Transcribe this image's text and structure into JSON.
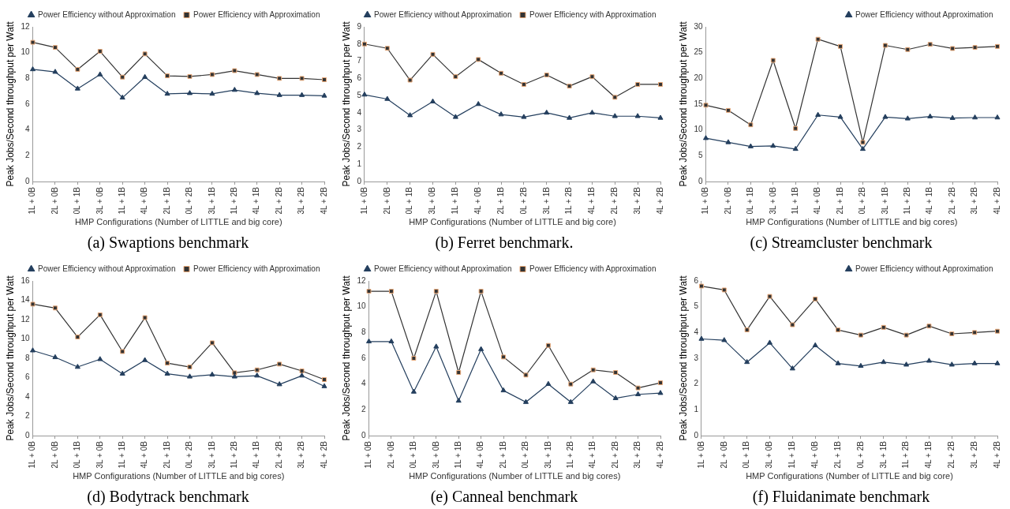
{
  "chart_data": [
    {
      "type": "line",
      "title": "(a) Swaptions benchmark",
      "xlabel": "HMP Configurations (Number of LITTLE and big core)",
      "ylabel": "Peak Jobs/Second throughput per Watt",
      "categories": [
        "1L + 0B",
        "2L + 0B",
        "0L + 1B",
        "3L + 0B",
        "1L + 1B",
        "4L + 0B",
        "2L + 1B",
        "0L + 2B",
        "3L + 1B",
        "1L + 2B",
        "4L + 1B",
        "2L + 2B",
        "3L + 2B",
        "4L + 2B"
      ],
      "ylim": [
        0,
        12
      ],
      "yticks": [
        0,
        2,
        4,
        6,
        8,
        10,
        12
      ],
      "legend": "top right",
      "series": [
        {
          "name": "Power Efficiency without Approximation",
          "color": "#243f5e",
          "marker": "triangle",
          "values": [
            8.7,
            8.5,
            7.2,
            8.3,
            6.5,
            8.1,
            6.8,
            6.85,
            6.8,
            7.1,
            6.85,
            6.7,
            6.7,
            6.65
          ]
        },
        {
          "name": "Power Efficiency with Approximation",
          "color": "#333333",
          "marker": "square",
          "values": [
            10.8,
            10.4,
            8.7,
            10.1,
            8.1,
            9.9,
            8.2,
            8.15,
            8.3,
            8.6,
            8.3,
            8.0,
            8.0,
            7.9
          ]
        }
      ]
    },
    {
      "type": "line",
      "title": "(b) Ferret benchmark.",
      "xlabel": "HMP Configurations (Number of LITTLE and big core)",
      "ylabel": "Peak Jobs/Second throughput per Watt",
      "categories": [
        "1L + 0B",
        "2L + 0B",
        "0L + 1B",
        "3L + 0B",
        "1L + 1B",
        "4L + 0B",
        "2L + 1B",
        "0L + 2B",
        "3L + 1B",
        "1L + 2B",
        "4L + 1B",
        "2L + 2B",
        "3L + 2B",
        "4L + 2B"
      ],
      "ylim": [
        0,
        9
      ],
      "yticks": [
        0,
        1,
        2,
        3,
        4,
        5,
        6,
        7,
        8,
        9
      ],
      "legend": "top right",
      "series": [
        {
          "name": "Power Efficiency without Approximation",
          "color": "#243f5e",
          "marker": "triangle",
          "values": [
            5.05,
            4.8,
            3.85,
            4.65,
            3.75,
            4.5,
            3.9,
            3.75,
            4.0,
            3.7,
            4.0,
            3.8,
            3.8,
            3.7
          ]
        },
        {
          "name": "Power Efficiency with Approximation",
          "color": "#333333",
          "marker": "square",
          "values": [
            8.0,
            7.75,
            5.9,
            7.4,
            6.1,
            7.1,
            6.3,
            5.65,
            6.2,
            5.55,
            6.1,
            4.9,
            5.65,
            5.65
          ]
        }
      ]
    },
    {
      "type": "line",
      "title": "(c) Streamcluster benchmark",
      "xlabel": "HMP Configurations (Number of LITTLE and big cores)",
      "ylabel": "Peak Jobs/Second throughput per Watt",
      "categories": [
        "1L + 0B",
        "2L + 0B",
        "0L + 1B",
        "3L + 0B",
        "1L + 1B",
        "4L + 0B",
        "2L + 1B",
        "0L + 2B",
        "3L + 1B",
        "1L + 2B",
        "4L + 1B",
        "2L + 2B",
        "3L + 2B",
        "4L + 2B"
      ],
      "ylim": [
        0,
        30
      ],
      "yticks": [
        0,
        5,
        10,
        15,
        20,
        25,
        30
      ],
      "legend": "top right",
      "series": [
        {
          "name": "Power Efficiency without Approximation",
          "color": "#243f5e",
          "marker": "triangle",
          "values": [
            8.4,
            7.6,
            6.8,
            6.9,
            6.3,
            12.9,
            12.5,
            6.3,
            12.5,
            12.2,
            12.6,
            12.3,
            12.4,
            12.4
          ]
        },
        {
          "color": "#333333",
          "marker": "square",
          "values": [
            14.8,
            13.8,
            11.0,
            23.5,
            10.3,
            27.6,
            26.2,
            7.6,
            26.4,
            25.6,
            26.6,
            25.8,
            26.0,
            26.2
          ]
        }
      ]
    },
    {
      "type": "line",
      "title": "(d) Bodytrack benchmark",
      "xlabel": "HMP Configurations (Number of LITTLE and big cores)",
      "ylabel": "Peak Jobs/Second throughput per Watt",
      "categories": [
        "1L + 0B",
        "2L + 0B",
        "0L + 1B",
        "3L + 0B",
        "1L + 1B",
        "4L + 0B",
        "2L + 1B",
        "0L + 2B",
        "3L + 1B",
        "1L + 2B",
        "4L + 1B",
        "2L + 2B",
        "3L + 2B",
        "4L + 2B"
      ],
      "ylim": [
        0,
        16
      ],
      "yticks": [
        0,
        2,
        4,
        6,
        8,
        10,
        12,
        14,
        16
      ],
      "legend": "top right",
      "series": [
        {
          "name": "Power Efficiency without Approximation",
          "color": "#243f5e",
          "marker": "triangle",
          "values": [
            8.8,
            8.1,
            7.1,
            7.9,
            6.4,
            7.8,
            6.4,
            6.1,
            6.3,
            6.1,
            6.2,
            5.3,
            6.2,
            5.1
          ]
        },
        {
          "name": "Power Efficiency with Approximation",
          "color": "#333333",
          "marker": "square",
          "values": [
            13.6,
            13.2,
            10.2,
            12.5,
            8.7,
            12.2,
            7.5,
            7.1,
            9.6,
            6.5,
            6.8,
            7.4,
            6.7,
            5.8
          ]
        }
      ]
    },
    {
      "type": "line",
      "title": "(e) Canneal benchmark",
      "xlabel": "HMP Configurations (Number of LITTLE and big cores)",
      "ylabel": "Peak Jobs/Second throughput per Watt",
      "categories": [
        "1L + 0B",
        "2L + 0B",
        "0L + 1B",
        "3L + 0B",
        "1L + 1B",
        "4L + 0B",
        "2L + 1B",
        "0L + 2B",
        "3L + 1B",
        "1L + 2B",
        "4L + 1B",
        "2L + 2B",
        "3L + 2B",
        "4L + 2B"
      ],
      "ylim": [
        0,
        12
      ],
      "yticks": [
        0,
        2,
        4,
        6,
        8,
        10,
        12
      ],
      "legend": "top right",
      "series": [
        {
          "name": "Power Efficiency without Approximation",
          "color": "#243f5e",
          "marker": "triangle",
          "values": [
            7.3,
            7.3,
            3.4,
            6.9,
            2.7,
            6.7,
            3.5,
            2.6,
            4.0,
            2.6,
            4.2,
            2.9,
            3.2,
            3.3
          ]
        },
        {
          "name": "Power Efficiency with Approximation",
          "color": "#333333",
          "marker": "square",
          "values": [
            11.2,
            11.2,
            6.0,
            11.2,
            4.9,
            11.2,
            6.1,
            4.7,
            7.0,
            4.0,
            5.1,
            4.9,
            3.7,
            4.1
          ]
        }
      ]
    },
    {
      "type": "line",
      "title": "(f) Fluidanimate benchmark",
      "xlabel": "HMP Configurations (Number of LITTLE and big core)",
      "ylabel": "Peak Jobs/Second throughput per Watt",
      "categories": [
        "1L + 0B",
        "2L + 0B",
        "0L + 1B",
        "3L + 0B",
        "1L + 1B",
        "4L + 0B",
        "2L + 1B",
        "0L + 2B",
        "3L + 1B",
        "1L + 2B",
        "4L + 1B",
        "2L + 2B",
        "3L + 2B",
        "4L + 2B"
      ],
      "ylim": [
        0,
        6
      ],
      "yticks": [
        0,
        1,
        2,
        3,
        4,
        5,
        6
      ],
      "legend": "top right",
      "series": [
        {
          "name": "Power Efficiency without Approximation",
          "color": "#243f5e",
          "marker": "triangle",
          "values": [
            3.75,
            3.7,
            2.85,
            3.6,
            2.6,
            3.5,
            2.8,
            2.7,
            2.85,
            2.75,
            2.9,
            2.75,
            2.8,
            2.8
          ]
        },
        {
          "color": "#333333",
          "marker": "square",
          "values": [
            5.8,
            5.65,
            4.1,
            5.4,
            4.3,
            5.3,
            4.1,
            3.9,
            4.2,
            3.9,
            4.25,
            3.95,
            4.0,
            4.05
          ]
        }
      ]
    }
  ]
}
